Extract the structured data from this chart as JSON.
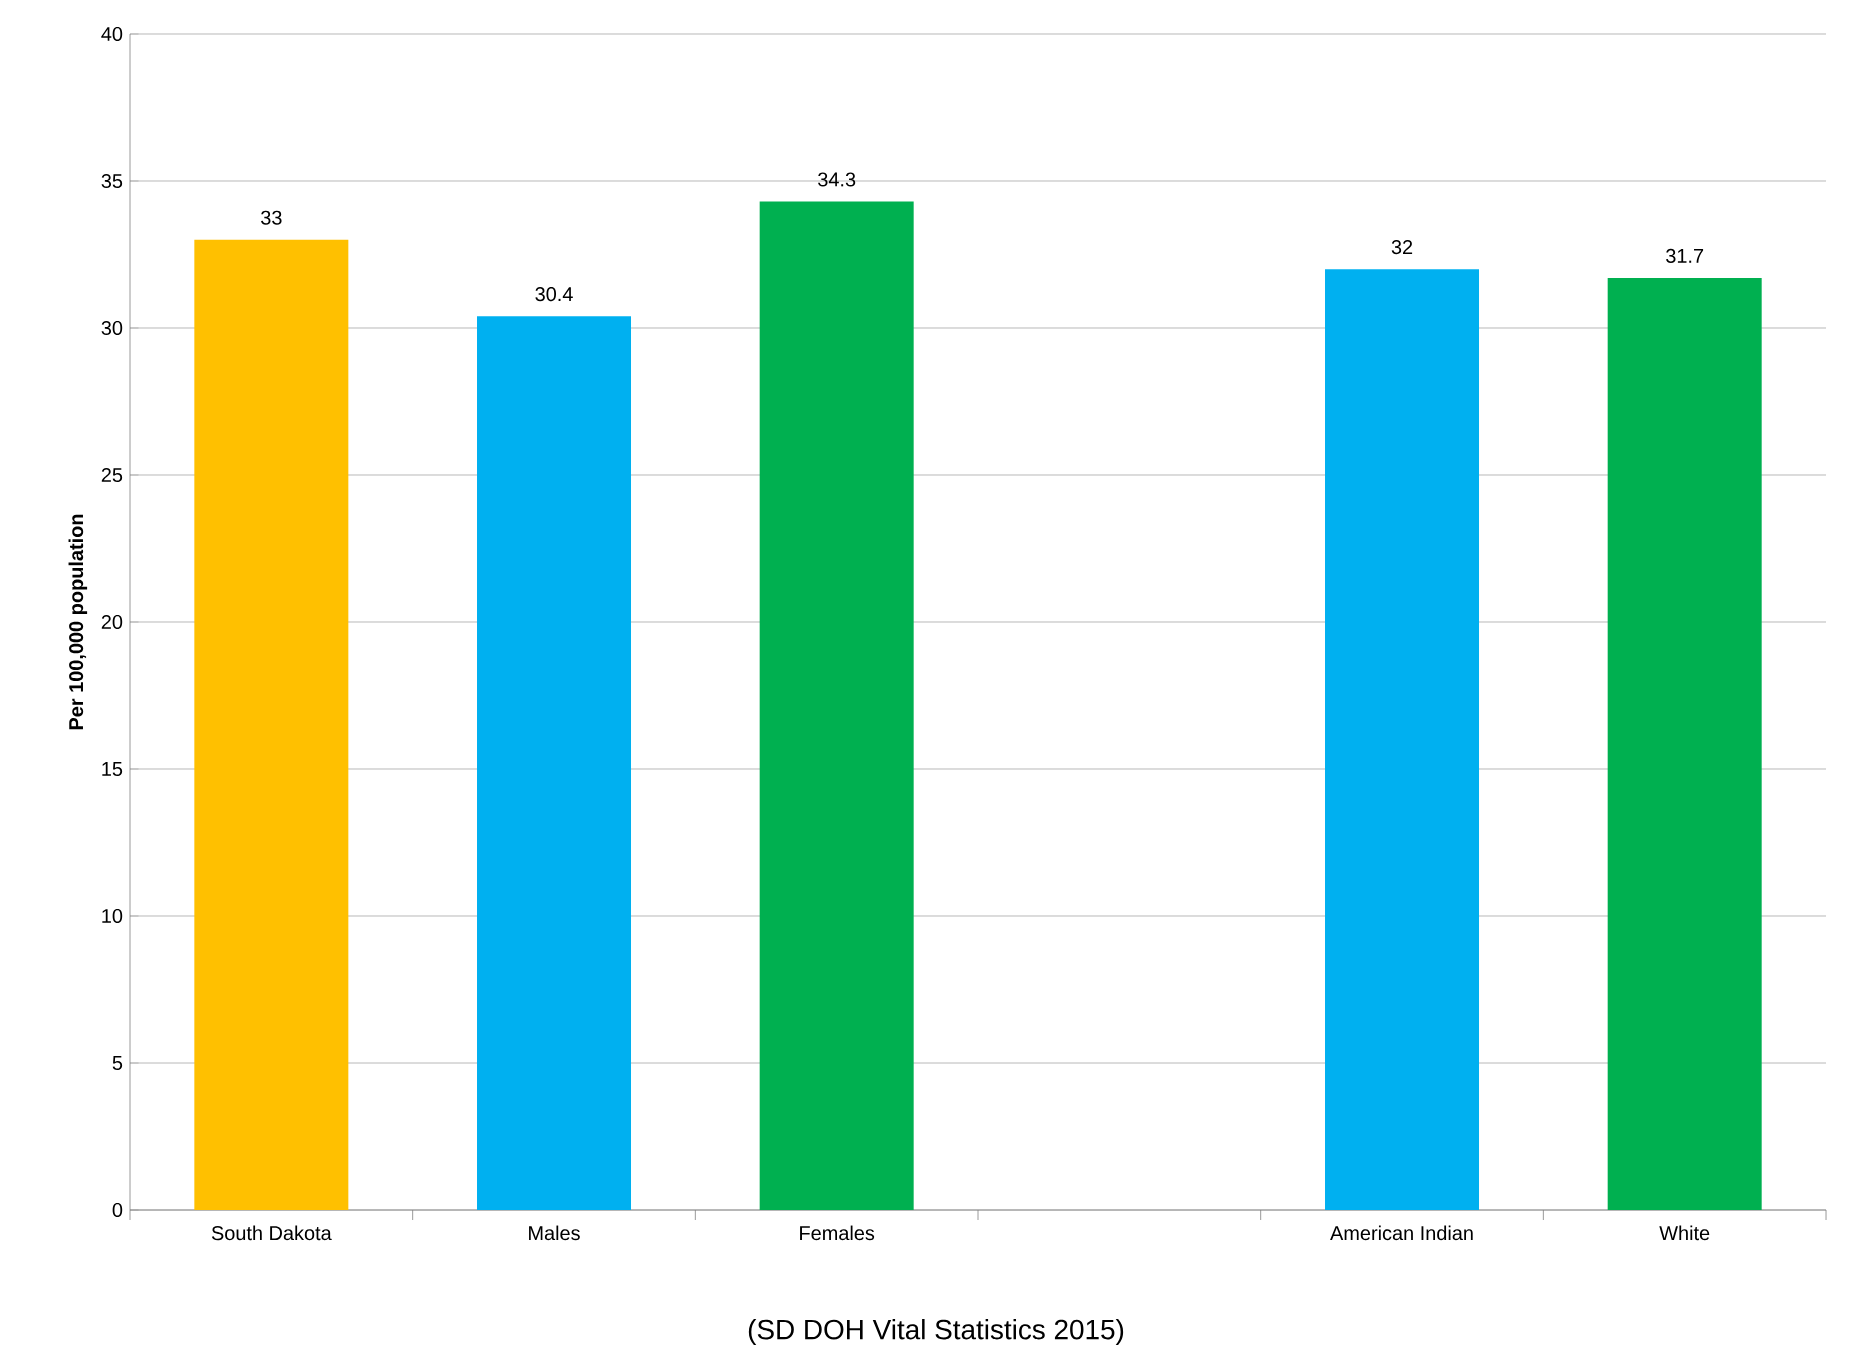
{
  "chart_data": {
    "type": "bar",
    "ylabel": "Per 100,000 population",
    "categories": [
      "South Dakota",
      "Males",
      "Females",
      null,
      "American Indian",
      "White"
    ],
    "values": [
      33,
      30.4,
      34.3,
      null,
      32,
      31.7
    ],
    "colors": [
      "#ffc000",
      "#00b0f0",
      "#00b050",
      null,
      "#00b0f0",
      "#00b050"
    ],
    "ylim": [
      0,
      40
    ],
    "yticks": [
      0,
      5,
      10,
      15,
      20,
      25,
      30,
      35,
      40
    ],
    "grid": "y",
    "data_labels": true,
    "annotations": [
      "(SD DOH Vital Statistics 2015)"
    ]
  }
}
